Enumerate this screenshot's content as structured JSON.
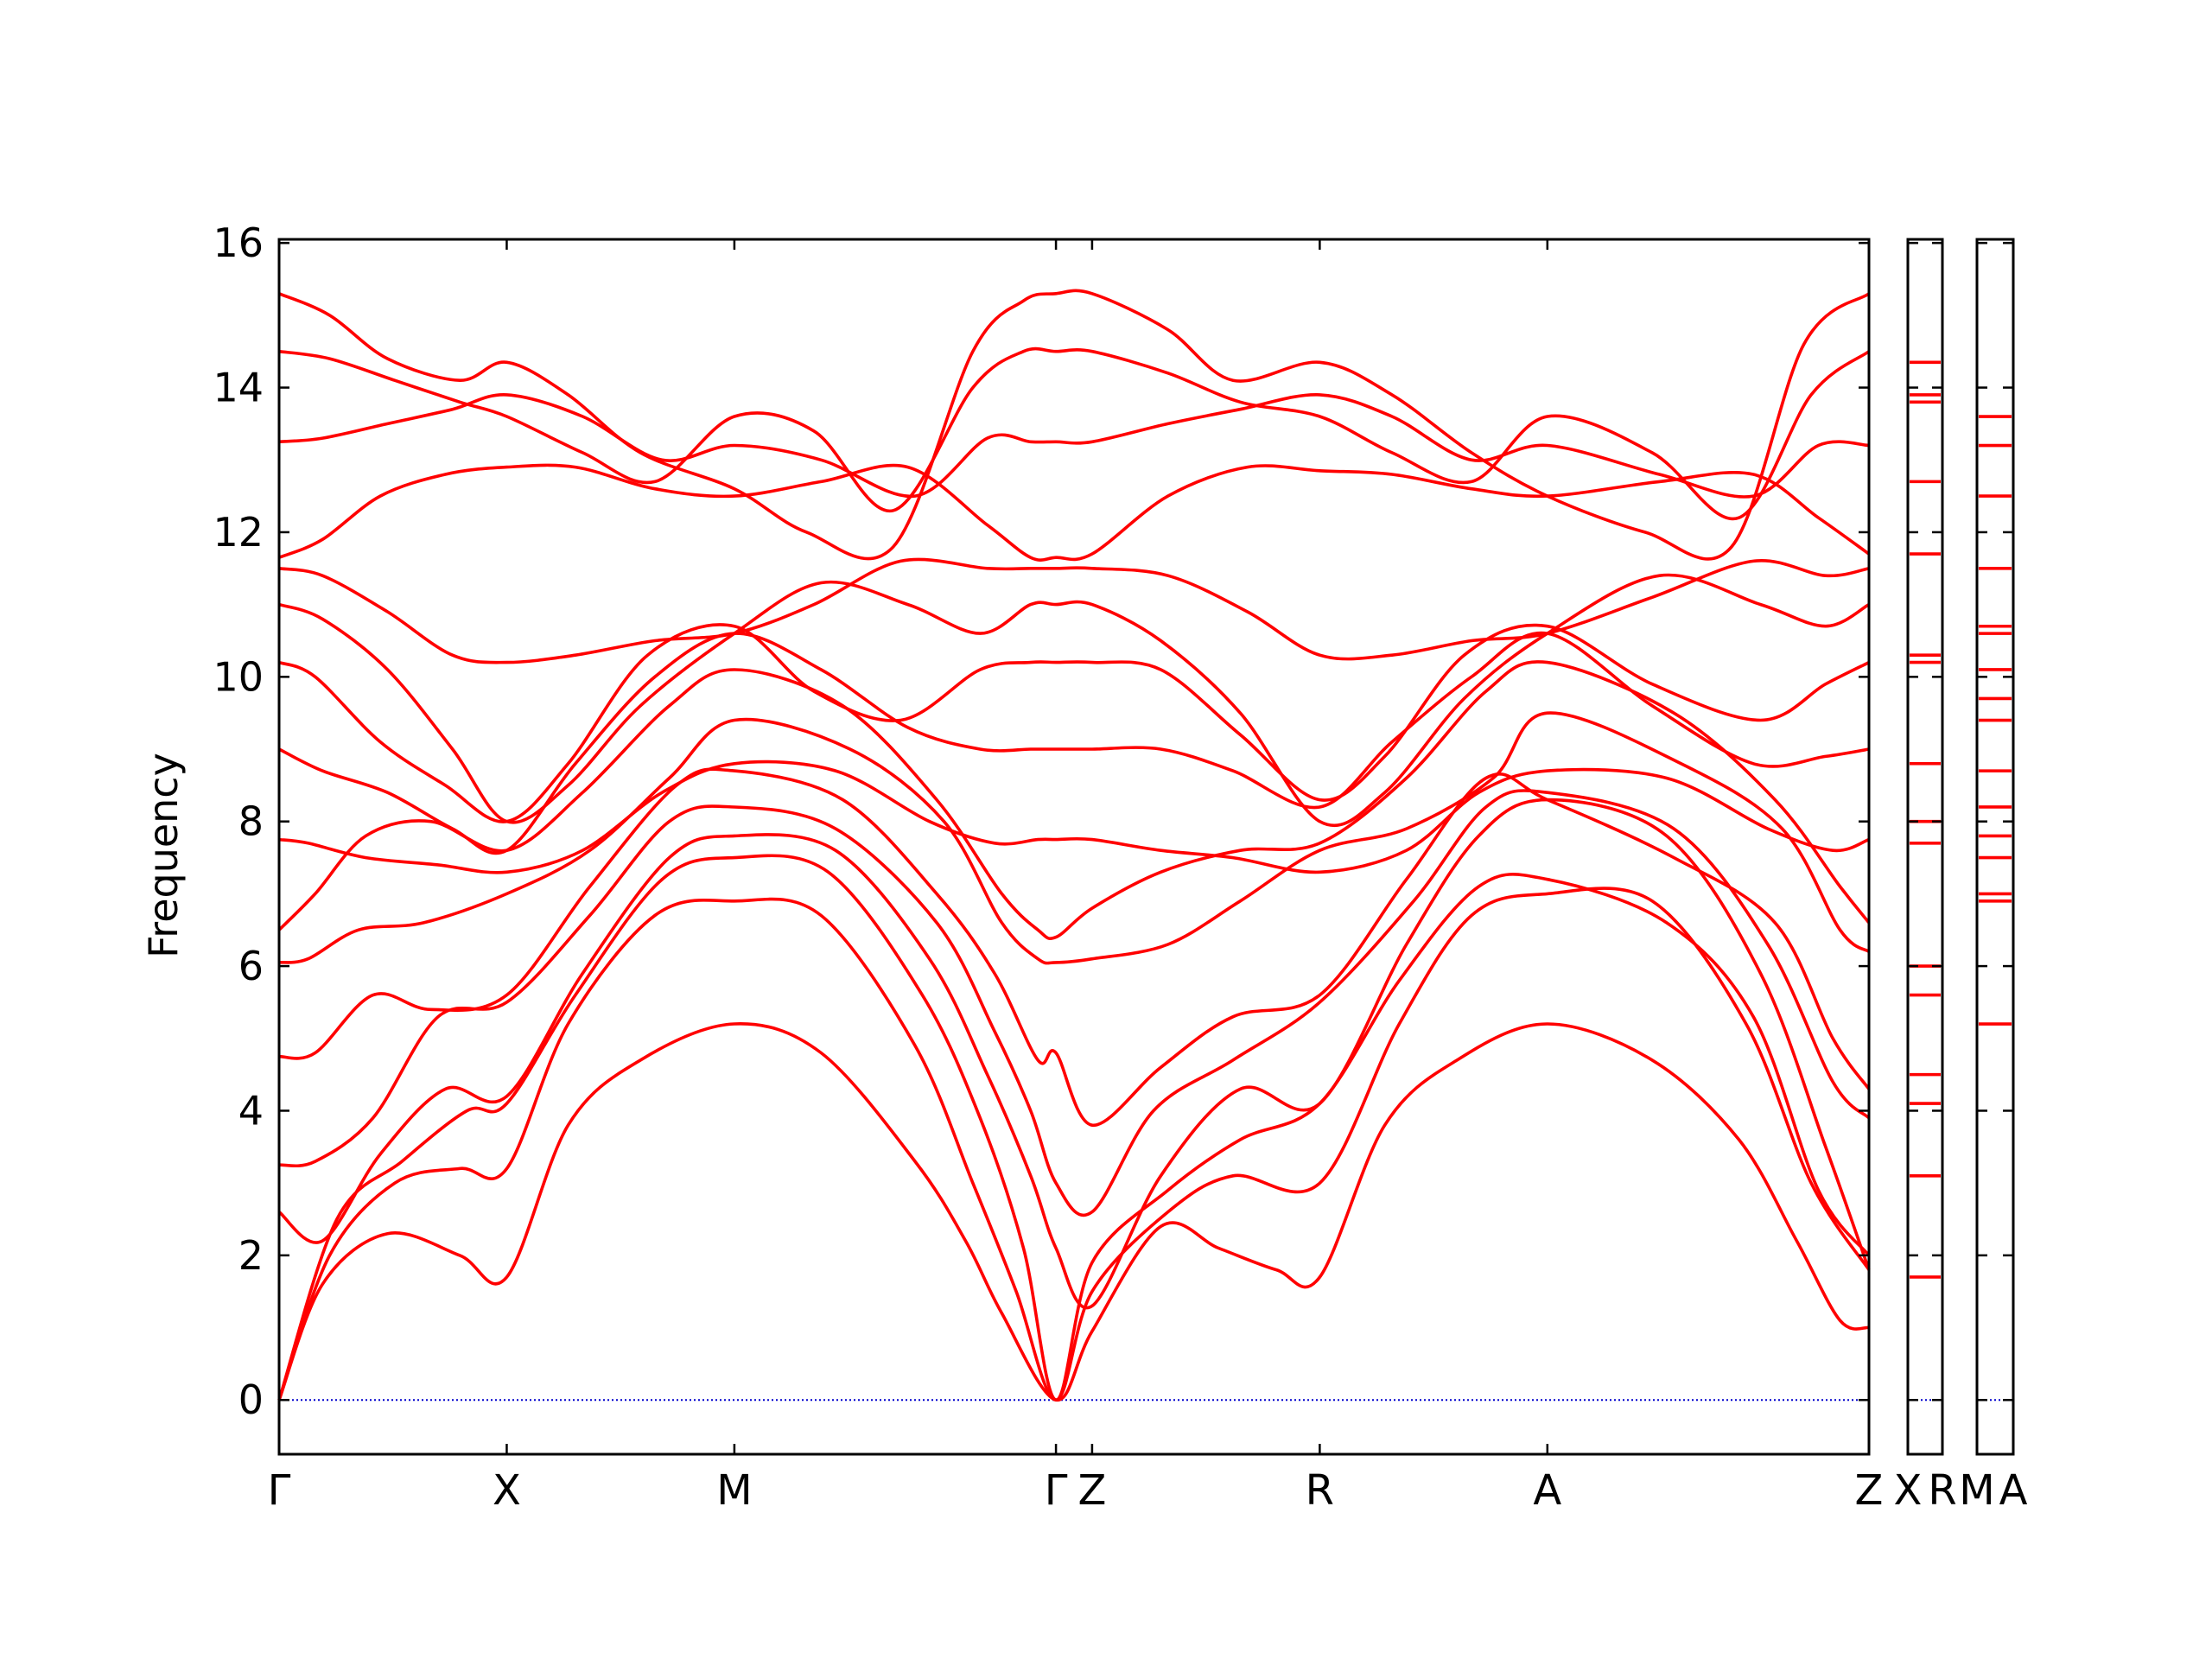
{
  "chart_data": {
    "type": "line",
    "ylabel": "Frequency",
    "xlabel": "",
    "ylim": [
      -0.75,
      16.05
    ],
    "yticks": [
      0,
      2,
      4,
      6,
      8,
      10,
      12,
      14,
      16
    ],
    "grid": false,
    "legend": "none",
    "line_color": "#ff0000",
    "zero_line_color": "#0000cc",
    "panels": [
      {
        "x_range": [
          0,
          22
        ],
        "ticks": [
          {
            "x": 0,
            "label": "Γ"
          },
          {
            "x": 3.15,
            "label": "X"
          },
          {
            "x": 6.3,
            "label": "M"
          },
          {
            "x": 10.75,
            "label": "Γ"
          },
          {
            "x": 11.25,
            "label": "Z"
          },
          {
            "x": 14.4,
            "label": "R"
          },
          {
            "x": 17.55,
            "label": "A"
          },
          {
            "x": 22,
            "label": "Z"
          }
        ],
        "series": [
          {
            "x": [
              0,
              0.6,
              1.5,
              2.5,
              3.15,
              4,
              5,
              6.3,
              7.5,
              8.8,
              9.5,
              10,
              10.75,
              11.25,
              12.2,
              13,
              13.8,
              14.4,
              15.3,
              16.3,
              17.55,
              19,
              20.2,
              21,
              21.6,
              22
            ],
            "y": [
              0,
              1.6,
              2.3,
              2.0,
              1.7,
              3.8,
              4.7,
              5.2,
              4.8,
              3.3,
              2.2,
              1.2,
              0,
              0.95,
              2.4,
              2.1,
              1.8,
              1.7,
              3.8,
              4.7,
              5.2,
              4.7,
              3.6,
              2.2,
              1.1,
              1.0
            ]
          },
          {
            "x": [
              0,
              0.7,
              1.6,
              2.5,
              3.15,
              4,
              5.2,
              6.3,
              7.5,
              8.8,
              9.6,
              10.2,
              10.75,
              11.25,
              12.3,
              13.2,
              14.4,
              15.5,
              16.5,
              17.55,
              19,
              20.3,
              21.2,
              22
            ],
            "y": [
              0,
              2.0,
              3.0,
              3.2,
              3.2,
              5.2,
              6.7,
              6.9,
              6.7,
              4.9,
              3.0,
              1.5,
              0,
              1.5,
              2.6,
              3.1,
              3.0,
              5.2,
              6.7,
              7.0,
              6.9,
              5.2,
              3.0,
              1.8
            ]
          },
          {
            "x": [
              0,
              0.8,
              1.7,
              2.6,
              3.15,
              4.1,
              5.3,
              6.3,
              7.6,
              8.9,
              9.7,
              10.3,
              10.75,
              11.25,
              12.3,
              13.3,
              14.4,
              15.5,
              16.6,
              17.55,
              19.2,
              20.4,
              21.3,
              22
            ],
            "y": [
              0,
              2.5,
              3.3,
              4.0,
              4.1,
              5.6,
              7.2,
              7.5,
              7.3,
              5.6,
              3.9,
              2.1,
              0,
              1.9,
              2.9,
              3.6,
              4.1,
              5.8,
              7.1,
              7.2,
              6.6,
              5.3,
              2.9,
              2.0
            ]
          },
          {
            "x": [
              0,
              0.6,
              1.4,
              2.3,
              3.15,
              4.2,
              5.4,
              6.3,
              7.7,
              9.0,
              9.8,
              10.4,
              10.75,
              11.25,
              12.2,
              13.3,
              14.4,
              15.6,
              16.6,
              17.55,
              19.2,
              20.5,
              21.4,
              22
            ],
            "y": [
              2.6,
              2.2,
              3.4,
              4.3,
              4.2,
              5.9,
              7.5,
              7.8,
              7.6,
              6.1,
              4.5,
              3.1,
              2.1,
              1.3,
              3.1,
              4.3,
              4.1,
              6.3,
              7.8,
              8.3,
              7.8,
              5.9,
              3.5,
              1.8
            ]
          },
          {
            "x": [
              0,
              0.5,
              1.3,
              2.2,
              3.15,
              4.3,
              5.4,
              6.3,
              7.7,
              9.1,
              9.9,
              10.4,
              10.75,
              11.25,
              12.1,
              13.2,
              14.4,
              15.7,
              16.7,
              17.55,
              19.3,
              20.6,
              21.5,
              22
            ],
            "y": [
              3.25,
              3.3,
              3.9,
              5.3,
              5.5,
              6.7,
              8.0,
              8.2,
              7.9,
              6.6,
              5.1,
              4.0,
              3.0,
              2.6,
              4.0,
              4.7,
              5.5,
              6.9,
              8.2,
              8.4,
              7.9,
              6.3,
              4.4,
              3.9
            ]
          },
          {
            "x": [
              0,
              0.5,
              1.3,
              2.1,
              3.15,
              4.3,
              5.5,
              6.3,
              7.8,
              9.1,
              9.9,
              10.5,
              10.75,
              11.25,
              12.2,
              13.2,
              14.4,
              15.6,
              16.7,
              17.55,
              19.3,
              20.7,
              21.5,
              22
            ],
            "y": [
              4.75,
              4.8,
              5.6,
              5.4,
              5.6,
              7.1,
              8.5,
              8.7,
              8.3,
              7.0,
              5.9,
              4.7,
              4.8,
              3.8,
              4.6,
              5.3,
              5.6,
              7.2,
              8.6,
              8.3,
              7.5,
              6.6,
              5.0,
              4.3
            ]
          },
          {
            "x": [
              0,
              0.4,
              1.1,
              2.0,
              3.15,
              4.3,
              5.4,
              6.3,
              7.9,
              9.2,
              10.0,
              10.5,
              10.75,
              11.25,
              12.3,
              13.3,
              14.4,
              15.6,
              16.8,
              17.55,
              19.4,
              20.8,
              21.6,
              22
            ],
            "y": [
              6.05,
              6.1,
              6.5,
              6.6,
              7.0,
              7.6,
              8.6,
              9.4,
              9.0,
              8.0,
              6.6,
              6.1,
              6.05,
              6.1,
              6.3,
              6.9,
              7.6,
              7.9,
              8.6,
              9.5,
              8.8,
              7.9,
              6.5,
              6.2
            ]
          },
          {
            "x": [
              0,
              0.5,
              1.2,
              2.1,
              3.15,
              4.2,
              5.4,
              6.3,
              7.8,
              9.1,
              10.0,
              10.5,
              10.75,
              11.25,
              12.2,
              13.3,
              14.4,
              15.6,
              16.7,
              17.55,
              19.3,
              20.7,
              21.6,
              22
            ],
            "y": [
              6.5,
              7.0,
              7.8,
              8.0,
              7.6,
              8.4,
              9.6,
              10.1,
              9.6,
              8.3,
              7.0,
              6.5,
              6.4,
              6.8,
              7.3,
              7.6,
              7.7,
              8.6,
              9.8,
              10.2,
              9.5,
              8.3,
              7.1,
              6.6
            ]
          },
          {
            "x": [
              0,
              0.4,
              1.2,
              2.2,
              3.15,
              4.2,
              5.3,
              6.3,
              7.7,
              9.0,
              9.9,
              10.5,
              10.75,
              11.25,
              12.2,
              13.2,
              14.4,
              15.6,
              16.6,
              17.55,
              19.2,
              20.6,
              21.5,
              22
            ],
            "y": [
              7.75,
              7.7,
              7.5,
              7.4,
              7.3,
              7.6,
              8.4,
              8.8,
              8.7,
              8.0,
              7.7,
              7.75,
              7.75,
              7.75,
              7.6,
              7.5,
              7.3,
              7.6,
              8.4,
              8.7,
              8.6,
              7.9,
              7.6,
              7.75
            ]
          },
          {
            "x": [
              0,
              0.6,
              1.5,
              2.4,
              3.15,
              4.1,
              5.2,
              6.3,
              7.5,
              8.7,
              9.7,
              10.4,
              10.75,
              11.25,
              12.2,
              13.2,
              14.4,
              15.4,
              16.5,
              17.55,
              19.0,
              20.4,
              21.4,
              22
            ],
            "y": [
              9.0,
              8.7,
              8.4,
              7.9,
              7.6,
              8.8,
              10.0,
              10.6,
              10.1,
              9.3,
              9.0,
              9.0,
              9.0,
              9.0,
              9.0,
              8.7,
              8.2,
              9.1,
              10.0,
              10.6,
              9.6,
              8.8,
              8.9,
              9.0
            ]
          },
          {
            "x": [
              0,
              0.5,
              1.4,
              2.3,
              3.15,
              4.0,
              5.1,
              6.3,
              7.4,
              8.6,
              9.7,
              10.4,
              10.75,
              11.25,
              12.2,
              13.3,
              14.4,
              15.3,
              16.4,
              17.55,
              19.0,
              20.5,
              21.4,
              22
            ],
            "y": [
              10.2,
              10.0,
              9.1,
              8.5,
              8.0,
              8.8,
              10.3,
              10.7,
              9.8,
              9.4,
              10.1,
              10.2,
              10.2,
              10.2,
              10.1,
              9.2,
              8.3,
              8.9,
              10.3,
              10.7,
              9.9,
              9.4,
              9.9,
              10.2
            ]
          },
          {
            "x": [
              0,
              0.6,
              1.5,
              2.4,
              3.15,
              4.0,
              5.0,
              6.3,
              7.5,
              8.7,
              9.7,
              10.4,
              10.75,
              11.25,
              12.2,
              13.3,
              14.4,
              15.3,
              16.4,
              17.55,
              19.1,
              20.5,
              21.4,
              22
            ],
            "y": [
              11.0,
              10.8,
              10.1,
              9.0,
              8.0,
              8.5,
              9.6,
              10.6,
              11.3,
              11.0,
              10.6,
              11.0,
              11.0,
              11.0,
              10.5,
              9.5,
              8.0,
              8.4,
              9.7,
              10.6,
              11.4,
              11.0,
              10.7,
              11.0
            ]
          },
          {
            "x": [
              0,
              0.6,
              1.5,
              2.4,
              3.15,
              4.1,
              5.2,
              6.3,
              7.4,
              8.6,
              9.8,
              10.4,
              10.75,
              11.25,
              12.3,
              13.4,
              14.4,
              15.4,
              16.5,
              17.55,
              19.0,
              20.4,
              21.4,
              22
            ],
            "y": [
              11.5,
              11.4,
              10.9,
              10.3,
              10.2,
              10.3,
              10.5,
              10.6,
              11.0,
              11.6,
              11.5,
              11.5,
              11.5,
              11.5,
              11.4,
              10.9,
              10.3,
              10.3,
              10.5,
              10.6,
              11.1,
              11.6,
              11.4,
              11.5
            ]
          },
          {
            "x": [
              0,
              0.6,
              1.4,
              2.3,
              3.15,
              4.1,
              5.2,
              6.3,
              7.5,
              8.7,
              9.8,
              10.4,
              10.75,
              11.25,
              12.3,
              13.4,
              14.4,
              15.4,
              16.5,
              17.55,
              19.1,
              20.4,
              21.3,
              22
            ],
            "y": [
              11.65,
              11.9,
              12.5,
              12.8,
              12.9,
              12.9,
              12.6,
              12.5,
              12.7,
              12.9,
              12.1,
              11.65,
              11.65,
              11.7,
              12.5,
              12.9,
              12.85,
              12.8,
              12.6,
              12.5,
              12.7,
              12.8,
              12.2,
              11.7
            ]
          },
          {
            "x": [
              0,
              0.6,
              1.5,
              2.4,
              3.15,
              4.2,
              5.3,
              6.3,
              7.5,
              8.8,
              9.8,
              10.4,
              10.75,
              11.25,
              12.3,
              13.3,
              14.4,
              15.4,
              16.5,
              17.55,
              19.1,
              20.4,
              21.3,
              22
            ],
            "y": [
              13.25,
              13.3,
              13.5,
              13.7,
              13.9,
              13.6,
              13.0,
              13.2,
              13.0,
              12.5,
              13.3,
              13.25,
              13.25,
              13.25,
              13.5,
              13.7,
              13.9,
              13.6,
              13.0,
              13.2,
              12.8,
              12.5,
              13.2,
              13.2
            ]
          },
          {
            "x": [
              0,
              0.7,
              1.6,
              2.5,
              3.15,
              4.2,
              5.2,
              6.3,
              7.4,
              8.5,
              9.6,
              10.3,
              10.75,
              11.25,
              12.3,
              13.3,
              14.4,
              15.4,
              16.5,
              17.55,
              19.0,
              20.2,
              21.2,
              22
            ],
            "y": [
              14.5,
              14.4,
              14.1,
              13.8,
              13.6,
              13.1,
              12.7,
              13.6,
              13.4,
              12.3,
              14.0,
              14.5,
              14.5,
              14.5,
              14.2,
              13.8,
              13.6,
              13.1,
              12.7,
              13.6,
              13.1,
              12.2,
              13.9,
              14.5
            ]
          },
          {
            "x": [
              0,
              0.7,
              1.5,
              2.5,
              3.15,
              4.0,
              5.0,
              6.3,
              7.3,
              8.5,
              9.6,
              10.3,
              10.75,
              11.25,
              12.3,
              13.2,
              14.4,
              15.4,
              16.5,
              17.55,
              18.9,
              20.1,
              21.1,
              22
            ],
            "y": [
              15.3,
              15.0,
              14.4,
              14.1,
              14.35,
              13.9,
              13.1,
              12.6,
              12.0,
              11.8,
              14.5,
              15.2,
              15.3,
              15.3,
              14.8,
              14.1,
              14.35,
              13.9,
              13.1,
              12.5,
              12.0,
              11.8,
              14.6,
              15.3
            ]
          }
        ]
      },
      {
        "x_range": [
          0,
          1
        ],
        "ticks": [
          {
            "x": 0,
            "label": "X"
          },
          {
            "x": 1,
            "label": "R"
          }
        ],
        "levels": [
          1.7,
          3.1,
          4.1,
          4.5,
          5.6,
          6.0,
          7.7,
          8.0,
          8.8,
          10.2,
          10.3,
          11.7,
          12.7,
          13.8,
          13.9,
          14.35
        ]
      },
      {
        "x_range": [
          0,
          1
        ],
        "ticks": [
          {
            "x": 0,
            "label": "M"
          },
          {
            "x": 1,
            "label": "A"
          }
        ],
        "levels": [
          5.2,
          6.9,
          7.0,
          7.5,
          7.8,
          8.2,
          8.7,
          9.4,
          9.7,
          10.1,
          10.6,
          10.7,
          11.5,
          12.5,
          13.2,
          13.6
        ]
      }
    ]
  }
}
